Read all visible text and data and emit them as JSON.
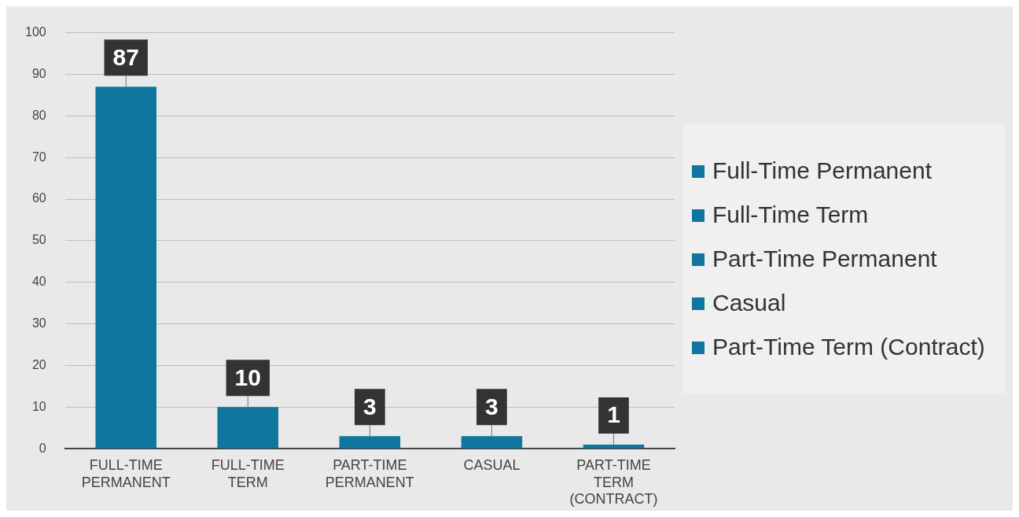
{
  "chart_data": {
    "type": "bar",
    "categories": [
      "FULL-TIME PERMANENT",
      "FULL-TIME TERM",
      "PART-TIME PERMANENT",
      "CASUAL",
      "PART-TIME TERM (CONTRACT)"
    ],
    "series": [
      {
        "name": "Full-Time Permanent",
        "color": "#0f76a0",
        "values": [
          87,
          null,
          null,
          null,
          null
        ]
      },
      {
        "name": "Full-Time Term",
        "color": "#0f76a0",
        "values": [
          null,
          10,
          null,
          null,
          null
        ]
      },
      {
        "name": "Part-Time Permanent",
        "color": "#0f76a0",
        "values": [
          null,
          null,
          3,
          null,
          null
        ]
      },
      {
        "name": "Casual",
        "color": "#0f76a0",
        "values": [
          null,
          null,
          null,
          3,
          null
        ]
      },
      {
        "name": "Part-Time Term (Contract)",
        "color": "#0f76a0",
        "values": [
          null,
          null,
          null,
          null,
          1
        ]
      }
    ],
    "ylim": [
      0,
      100
    ],
    "yticks": [
      0,
      10,
      20,
      30,
      40,
      50,
      60,
      70,
      80,
      90,
      100
    ],
    "grid": "y",
    "legend": "right",
    "data_labels": true
  }
}
